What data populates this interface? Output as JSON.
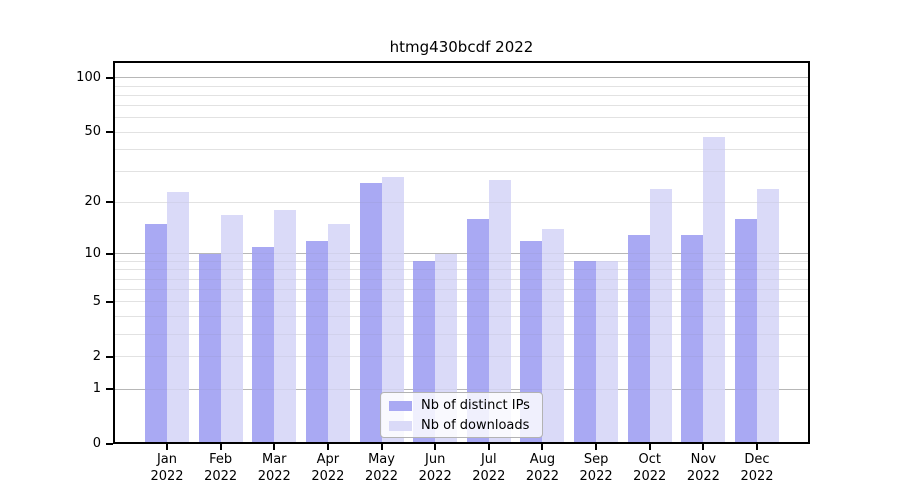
{
  "title": "htmg430bcdf 2022",
  "chart_data": {
    "type": "bar",
    "title": "htmg430bcdf 2022",
    "categories": [
      "Jan 2022",
      "Feb 2022",
      "Mar 2022",
      "Apr 2022",
      "May 2022",
      "Jun 2022",
      "Jul 2022",
      "Aug 2022",
      "Sep 2022",
      "Oct 2022",
      "Nov 2022",
      "Dec 2022"
    ],
    "series": [
      {
        "name": "Nb of distinct IPs",
        "color": "#a9a9f3",
        "values": [
          15,
          10,
          11,
          12,
          26,
          9,
          16,
          12,
          9,
          13,
          13,
          16
        ]
      },
      {
        "name": "Nb of downloads",
        "color": "#dadaf8",
        "values": [
          23,
          17,
          18,
          15,
          28,
          10,
          27,
          14,
          9,
          24,
          47,
          24
        ]
      }
    ],
    "xlabel": "",
    "ylabel": "",
    "yscale": "log10(1+y)",
    "ylim": [
      0,
      124
    ],
    "y_tick_values": [
      0,
      1,
      2,
      5,
      10,
      20,
      50,
      100
    ],
    "y_tick_labels": [
      "0",
      "1",
      "2",
      "5",
      "10",
      "20",
      "50",
      "100"
    ],
    "major_gridline_values": [
      1,
      10,
      100
    ],
    "minor_gridline_values": [
      2,
      3,
      4,
      5,
      6,
      7,
      8,
      9,
      20,
      30,
      40,
      50,
      60,
      70,
      80,
      90
    ],
    "grid": true,
    "legend_position": "lower center inside"
  },
  "colors": {
    "bar_distinct_ips": "#a9a9f3",
    "bar_downloads": "#dadaf8",
    "grid_minor": "#ededed",
    "grid_major": "#bdbdbd",
    "axis_frame": "#000000",
    "background": "#ffffff"
  }
}
